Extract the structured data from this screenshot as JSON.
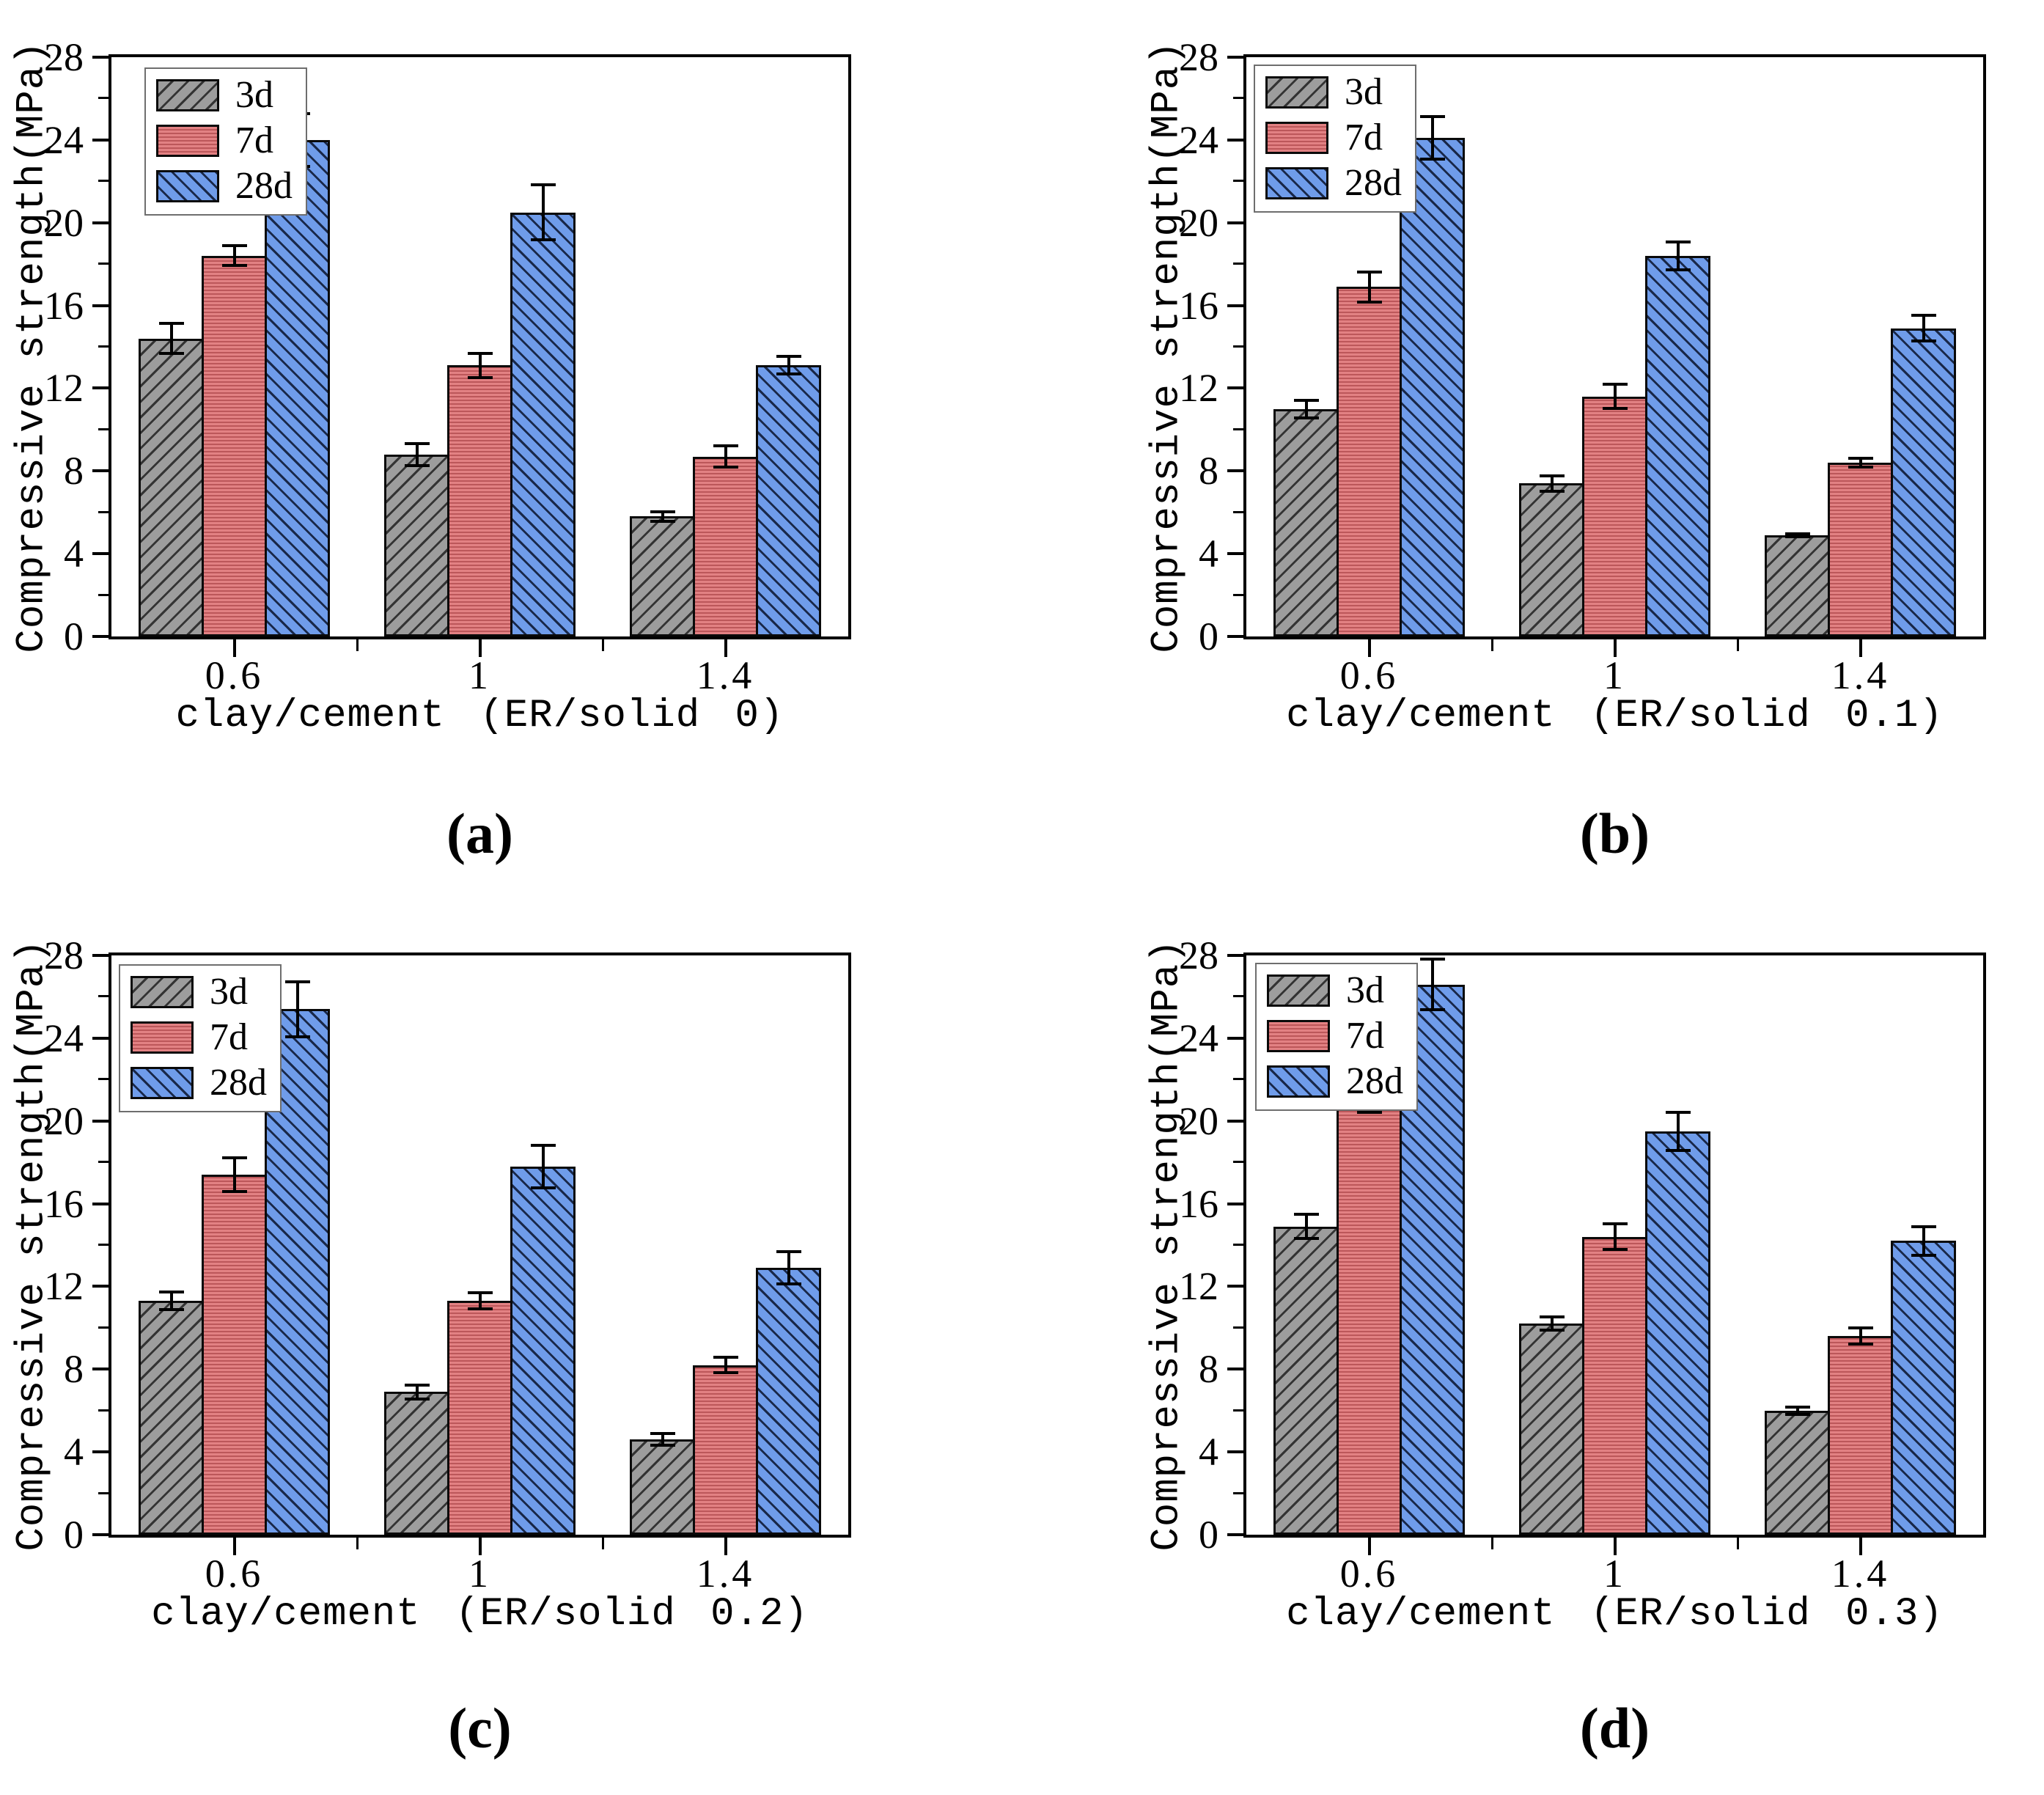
{
  "figure": {
    "background": "#ffffff",
    "axis_color": "#000000",
    "legend_items": [
      "3d",
      "7d",
      "28d"
    ]
  },
  "chart_data": [
    {
      "id": "a",
      "type": "bar",
      "caption": "(a)",
      "xlabel": "clay/cement (ER/solid 0)",
      "ylabel": "Compressive strength(MPa)",
      "categories": [
        "0.6",
        "1",
        "1.4"
      ],
      "ylim": [
        0,
        28
      ],
      "yticks": [
        0,
        4,
        8,
        12,
        16,
        20,
        24,
        28
      ],
      "grid": false,
      "legend_position": "top-left",
      "series": [
        {
          "name": "3d",
          "color": "#9d9d9d",
          "hatch": "/",
          "values": [
            14.4,
            8.8,
            5.8
          ],
          "errors": [
            0.8,
            0.6,
            0.3
          ]
        },
        {
          "name": "7d",
          "color": "#e28183",
          "hatch": "-",
          "values": [
            18.4,
            13.1,
            8.7
          ],
          "errors": [
            0.55,
            0.65,
            0.6
          ]
        },
        {
          "name": "28d",
          "color": "#6f9cea",
          "hatch": "\\",
          "values": [
            24.0,
            20.5,
            13.1
          ],
          "errors": [
            1.35,
            1.4,
            0.5
          ]
        }
      ]
    },
    {
      "id": "b",
      "type": "bar",
      "caption": "(b)",
      "xlabel": "clay/cement (ER/solid 0.1)",
      "ylabel": "Compressive strength(MPa)",
      "categories": [
        "0.6",
        "1",
        "1.4"
      ],
      "ylim": [
        0,
        28
      ],
      "yticks": [
        0,
        4,
        8,
        12,
        16,
        20,
        24,
        28
      ],
      "grid": false,
      "legend_position": "top-left",
      "series": [
        {
          "name": "3d",
          "color": "#9d9d9d",
          "hatch": "/",
          "values": [
            11.0,
            7.4,
            4.9
          ],
          "errors": [
            0.5,
            0.45,
            0.15
          ]
        },
        {
          "name": "7d",
          "color": "#e28183",
          "hatch": "-",
          "values": [
            16.9,
            11.6,
            8.4
          ],
          "errors": [
            0.8,
            0.65,
            0.3
          ]
        },
        {
          "name": "28d",
          "color": "#6f9cea",
          "hatch": "\\",
          "values": [
            24.1,
            18.4,
            14.9
          ],
          "errors": [
            1.1,
            0.75,
            0.7
          ]
        }
      ]
    },
    {
      "id": "c",
      "type": "bar",
      "caption": "(c)",
      "xlabel": "clay/cement (ER/solid 0.2)",
      "ylabel": "Compressive strength(MPa)",
      "categories": [
        "0.6",
        "1",
        "1.4"
      ],
      "ylim": [
        0,
        28
      ],
      "yticks": [
        0,
        4,
        8,
        12,
        16,
        20,
        24,
        28
      ],
      "grid": false,
      "legend_position": "top-left",
      "series": [
        {
          "name": "3d",
          "color": "#9d9d9d",
          "hatch": "/",
          "values": [
            11.3,
            6.9,
            4.6
          ],
          "errors": [
            0.5,
            0.4,
            0.35
          ]
        },
        {
          "name": "7d",
          "color": "#e28183",
          "hatch": "-",
          "values": [
            17.4,
            11.3,
            8.2
          ],
          "errors": [
            0.9,
            0.45,
            0.45
          ]
        },
        {
          "name": "28d",
          "color": "#6f9cea",
          "hatch": "\\",
          "values": [
            25.4,
            17.8,
            12.9
          ],
          "errors": [
            1.4,
            1.1,
            0.85
          ]
        }
      ]
    },
    {
      "id": "d",
      "type": "bar",
      "caption": "(d)",
      "xlabel": "clay/cement (ER/solid 0.3)",
      "ylabel": "Compressive strength(MPa)",
      "categories": [
        "0.6",
        "1",
        "1.4"
      ],
      "ylim": [
        0,
        28
      ],
      "yticks": [
        0,
        4,
        8,
        12,
        16,
        20,
        24,
        28
      ],
      "grid": false,
      "legend_position": "top-left",
      "series": [
        {
          "name": "3d",
          "color": "#9d9d9d",
          "hatch": "/",
          "values": [
            14.9,
            10.2,
            6.0
          ],
          "errors": [
            0.65,
            0.4,
            0.25
          ]
        },
        {
          "name": "7d",
          "color": "#e28183",
          "hatch": "-",
          "values": [
            21.2,
            14.4,
            9.6
          ],
          "errors": [
            0.85,
            0.7,
            0.45
          ]
        },
        {
          "name": "28d",
          "color": "#6f9cea",
          "hatch": "\\",
          "values": [
            26.6,
            19.5,
            14.2
          ],
          "errors": [
            1.3,
            1.0,
            0.75
          ]
        }
      ]
    }
  ]
}
